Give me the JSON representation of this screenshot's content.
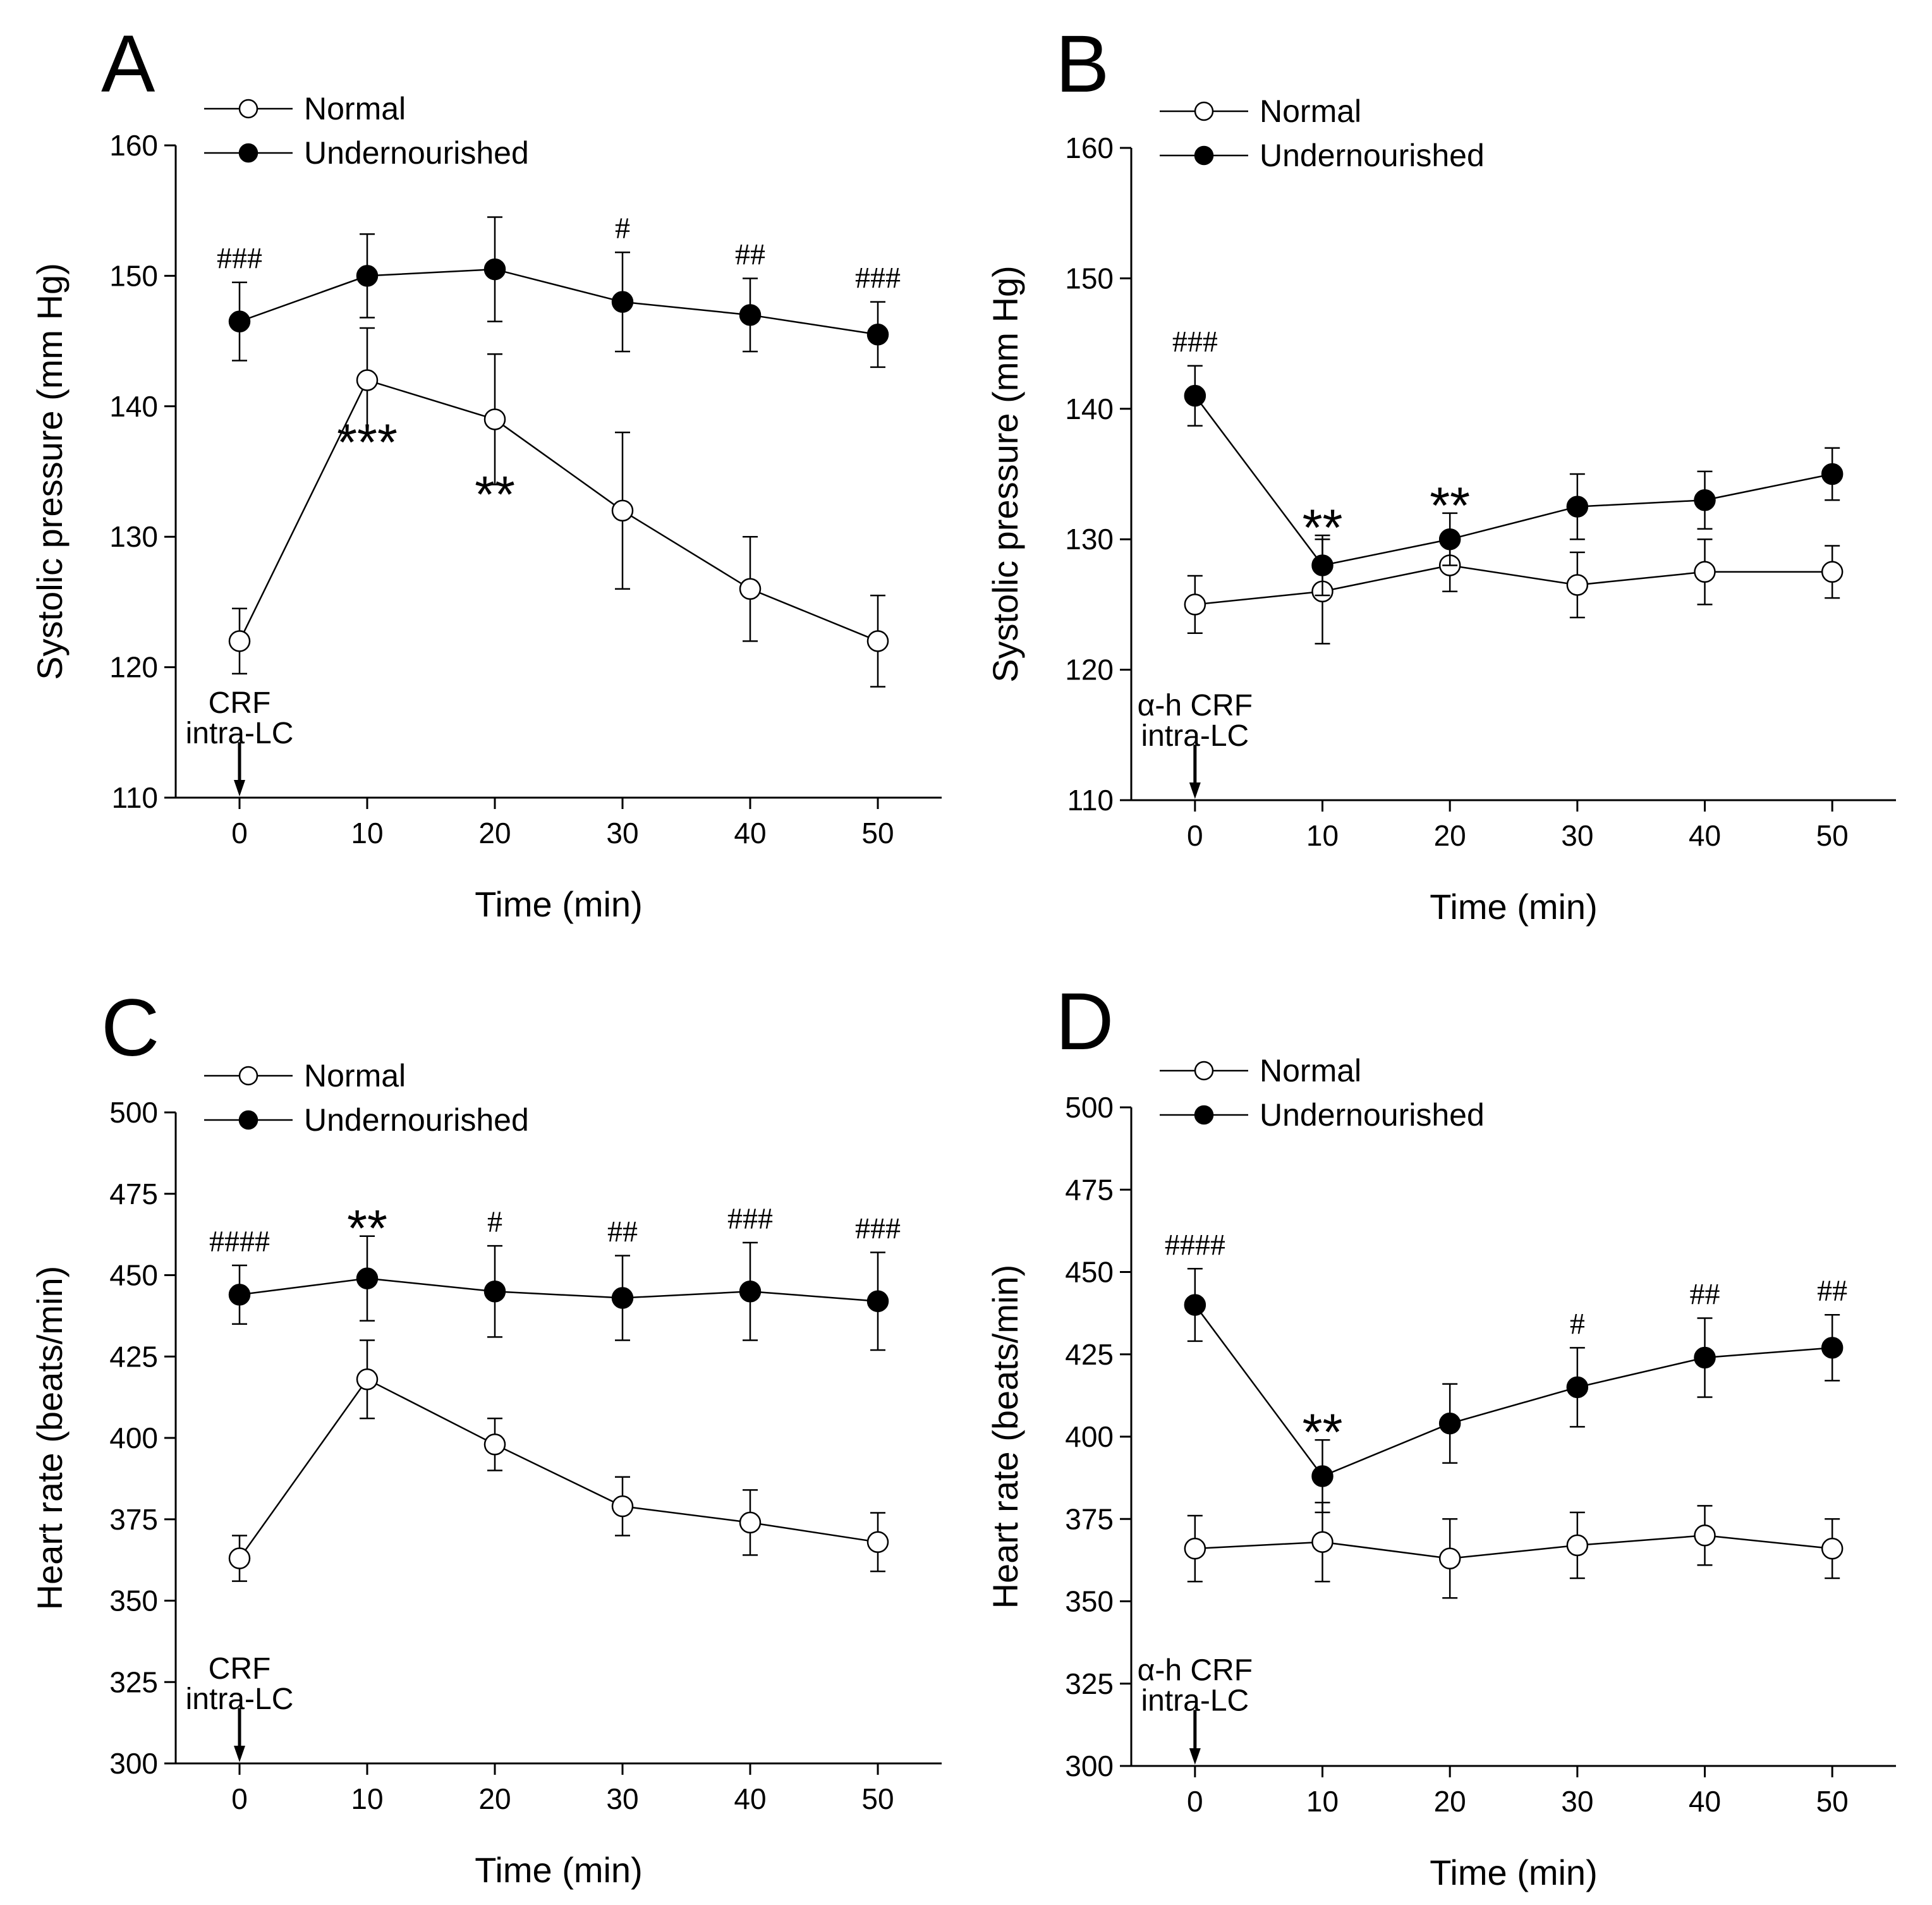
{
  "chart_data": [
    {
      "type": "line",
      "panel": "A",
      "xlabel": "Time (min)",
      "ylabel": "Systolic pressure (mm Hg)",
      "ylim": [
        110,
        160
      ],
      "yticks": [
        110,
        120,
        130,
        140,
        150,
        160
      ],
      "xlim": [
        -5,
        55
      ],
      "x": [
        0,
        10,
        20,
        30,
        40,
        50
      ],
      "annotation": [
        "CRF",
        "intra-LC"
      ],
      "series": [
        {
          "name": "Normal",
          "marker": "open",
          "values": [
            122,
            142,
            139,
            132,
            126,
            122
          ],
          "errors": [
            2.5,
            4,
            5,
            6,
            4,
            3.5
          ]
        },
        {
          "name": "Undernourished",
          "marker": "filled",
          "values": [
            146.5,
            150,
            150.5,
            148,
            147,
            145.5
          ],
          "errors": [
            3,
            3.2,
            4,
            3.8,
            2.8,
            2.5
          ]
        }
      ],
      "hash_marks": [
        {
          "x": 0,
          "text": "###"
        },
        {
          "x": 30,
          "text": "#"
        },
        {
          "x": 40,
          "text": "##"
        },
        {
          "x": 50,
          "text": "###"
        }
      ],
      "star_marks": [
        {
          "x": 10,
          "text": "***"
        },
        {
          "x": 20,
          "text": "**"
        }
      ]
    },
    {
      "type": "line",
      "panel": "B",
      "xlabel": "Time (min)",
      "ylabel": "Systolic pressure (mm Hg)",
      "ylim": [
        110,
        160
      ],
      "yticks": [
        110,
        120,
        130,
        140,
        150,
        160
      ],
      "xlim": [
        -5,
        55
      ],
      "x": [
        0,
        10,
        20,
        30,
        40,
        50
      ],
      "annotation": [
        "α-h CRF",
        "intra-LC"
      ],
      "series": [
        {
          "name": "Normal",
          "marker": "open",
          "values": [
            125,
            126,
            128,
            126.5,
            127.5,
            127.5
          ],
          "errors": [
            2.2,
            4,
            2,
            2.5,
            2.5,
            2
          ]
        },
        {
          "name": "Undernourished",
          "marker": "filled",
          "values": [
            141,
            128,
            130,
            132.5,
            133,
            135
          ],
          "errors": [
            2.3,
            2.3,
            2,
            2.5,
            2.2,
            2
          ]
        }
      ],
      "hash_marks": [
        {
          "x": 0,
          "text": "###"
        }
      ],
      "star_marks": [
        {
          "x": 10,
          "text": "**"
        },
        {
          "x": 20,
          "text": "**"
        }
      ]
    },
    {
      "type": "line",
      "panel": "C",
      "xlabel": "Time (min)",
      "ylabel": "Heart rate (beats/min)",
      "ylim": [
        300,
        500
      ],
      "yticks": [
        300,
        325,
        350,
        375,
        400,
        425,
        450,
        475,
        500
      ],
      "xlim": [
        -5,
        55
      ],
      "x": [
        0,
        10,
        20,
        30,
        40,
        50
      ],
      "annotation": [
        "CRF",
        "intra-LC"
      ],
      "series": [
        {
          "name": "Normal",
          "marker": "open",
          "values": [
            363,
            418,
            398,
            379,
            374,
            368
          ],
          "errors": [
            7,
            12,
            8,
            9,
            10,
            9
          ]
        },
        {
          "name": "Undernourished",
          "marker": "filled",
          "values": [
            444,
            449,
            445,
            443,
            445,
            442
          ],
          "errors": [
            9,
            13,
            14,
            13,
            15,
            15
          ]
        }
      ],
      "hash_marks": [
        {
          "x": 0,
          "text": "####"
        },
        {
          "x": 20,
          "text": "#"
        },
        {
          "x": 30,
          "text": "##"
        },
        {
          "x": 40,
          "text": "###"
        },
        {
          "x": 50,
          "text": "###"
        }
      ],
      "star_marks": [
        {
          "x": 10,
          "text": "**"
        }
      ]
    },
    {
      "type": "line",
      "panel": "D",
      "xlabel": "Time (min)",
      "ylabel": "Heart rate (beats/min)",
      "ylim": [
        300,
        500
      ],
      "yticks": [
        300,
        325,
        350,
        375,
        400,
        425,
        450,
        475,
        500
      ],
      "xlim": [
        -5,
        55
      ],
      "x": [
        0,
        10,
        20,
        30,
        40,
        50
      ],
      "annotation": [
        "α-h CRF",
        "intra-LC"
      ],
      "series": [
        {
          "name": "Normal",
          "marker": "open",
          "values": [
            366,
            368,
            363,
            367,
            370,
            366
          ],
          "errors": [
            10,
            12,
            12,
            10,
            9,
            9
          ]
        },
        {
          "name": "Undernourished",
          "marker": "filled",
          "values": [
            440,
            388,
            404,
            415,
            424,
            427
          ],
          "errors": [
            11,
            11,
            12,
            12,
            12,
            10
          ]
        }
      ],
      "hash_marks": [
        {
          "x": 0,
          "text": "####"
        },
        {
          "x": 30,
          "text": "#"
        },
        {
          "x": 40,
          "text": "##"
        },
        {
          "x": 50,
          "text": "##"
        }
      ],
      "star_marks": [
        {
          "x": 10,
          "text": "**"
        }
      ]
    }
  ]
}
